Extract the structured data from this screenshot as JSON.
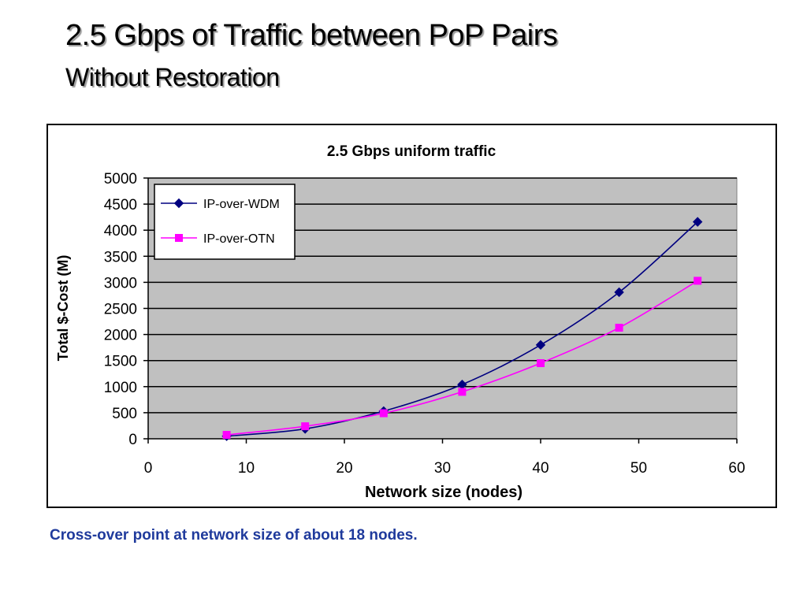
{
  "slide": {
    "title": "2.5 Gbps of Traffic between PoP Pairs",
    "subtitle": "Without Restoration",
    "caption": "Cross-over point at network size of about 18 nodes."
  },
  "chart_data": {
    "type": "line",
    "title": "2.5 Gbps uniform traffic",
    "xlabel": "Network size (nodes)",
    "ylabel": "Total $-Cost (M)",
    "xlim": [
      0,
      60
    ],
    "ylim": [
      0,
      5000
    ],
    "xticks": [
      0,
      10,
      20,
      30,
      40,
      50,
      60
    ],
    "yticks": [
      0,
      500,
      1000,
      1500,
      2000,
      2500,
      3000,
      3500,
      4000,
      4500,
      5000
    ],
    "grid": true,
    "legend_position": "top-left",
    "plot_background": "#c0c0c0",
    "series": [
      {
        "name": "IP-over-WDM",
        "color": "#000080",
        "marker": "diamond",
        "x": [
          8,
          16,
          24,
          32,
          40,
          48,
          56
        ],
        "y": [
          50,
          190,
          530,
          1040,
          1800,
          2810,
          4160
        ]
      },
      {
        "name": "IP-over-OTN",
        "color": "#ff00ff",
        "marker": "square",
        "x": [
          8,
          16,
          24,
          32,
          40,
          48,
          56
        ],
        "y": [
          75,
          240,
          490,
          900,
          1450,
          2130,
          3030
        ]
      }
    ]
  }
}
